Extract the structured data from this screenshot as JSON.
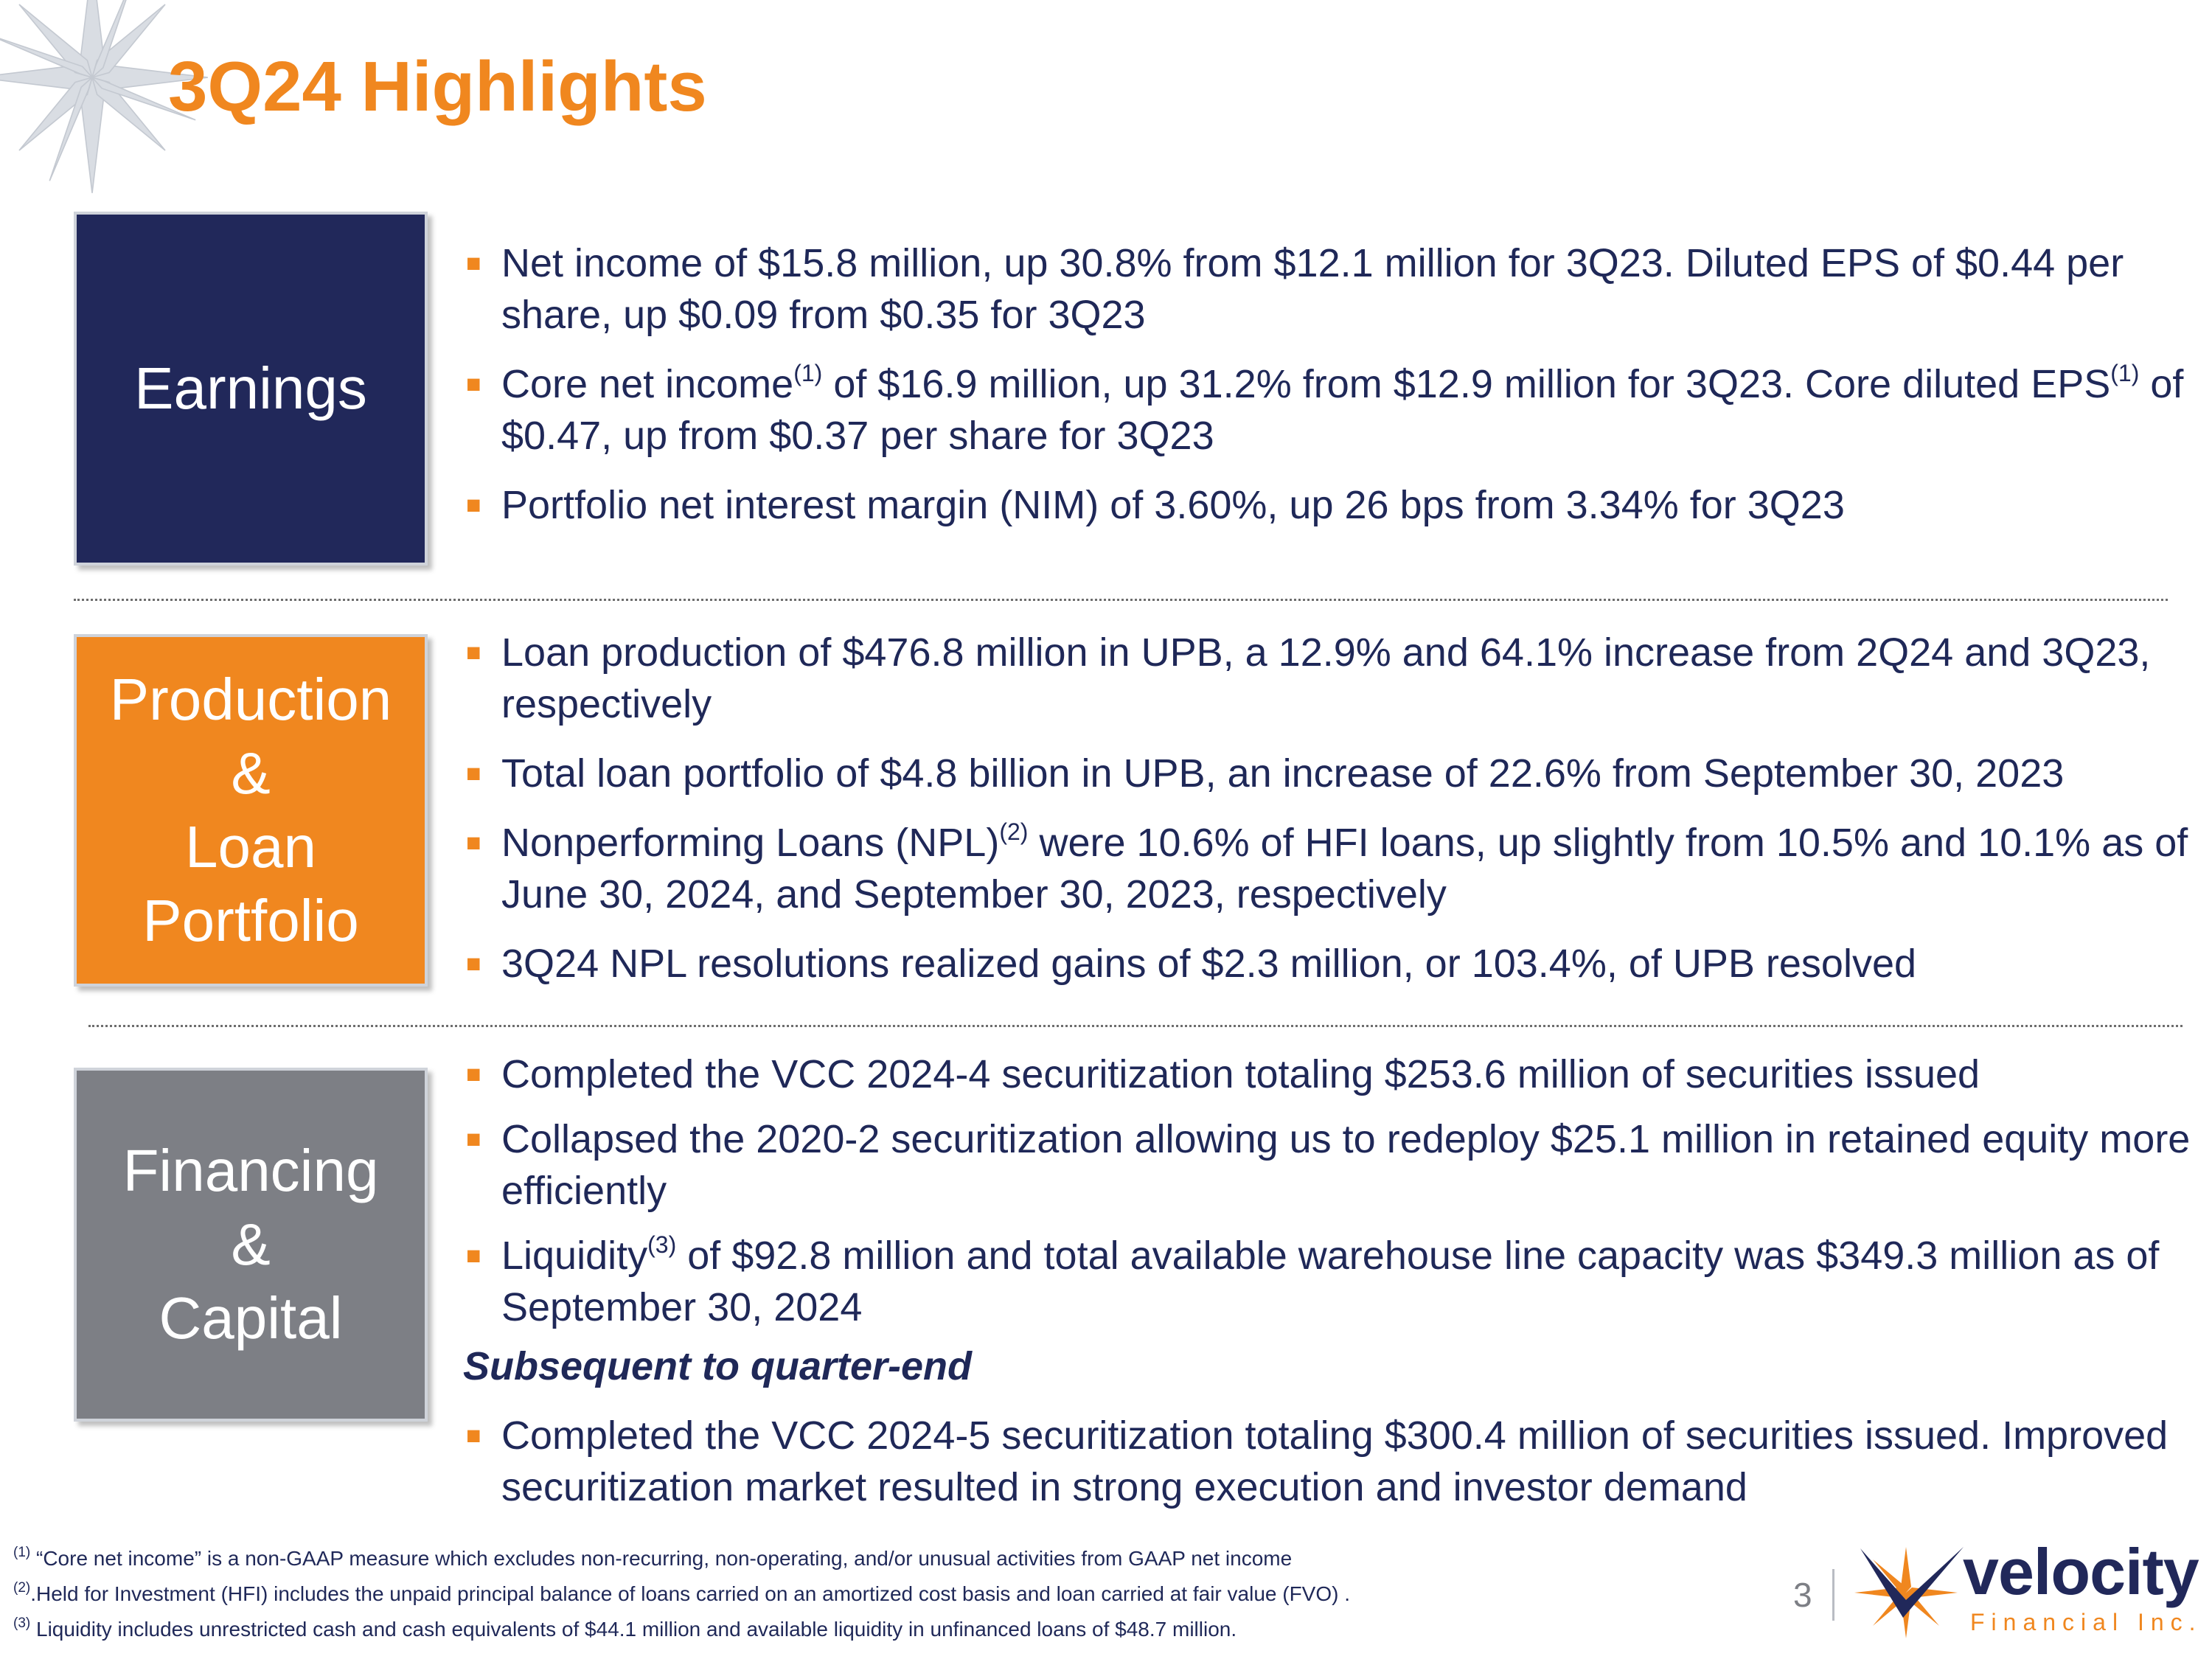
{
  "title": "3Q24 Highlights",
  "sections": {
    "earnings": {
      "label": "Earnings",
      "bullets": [
        {
          "text": "Net income of $15.8 million, up 30.8% from $12.1 million for 3Q23. Diluted EPS of $0.44 per share, up $0.09 from $0.35 for 3Q23"
        },
        {
          "pre": "Core net income",
          "sup": "(1)",
          "post": " of $16.9 million, up 31.2% from $12.9 million for 3Q23. Core diluted EPS",
          "sup2": "(1)",
          "post2": " of $0.47, up from $0.37 per share for 3Q23"
        },
        {
          "text": "Portfolio net interest margin (NIM) of 3.60%, up 26 bps from 3.34% for 3Q23"
        }
      ]
    },
    "production": {
      "label": "Production\n&\nLoan\nPortfolio",
      "bullets": [
        {
          "text": "Loan production of $476.8 million in UPB, a 12.9% and 64.1% increase from 2Q24 and 3Q23, respectively"
        },
        {
          "text": "Total loan portfolio of $4.8 billion in UPB, an increase of 22.6% from September 30, 2023"
        },
        {
          "pre": "Nonperforming Loans (NPL)",
          "sup": "(2)",
          "post": " were 10.6% of HFI loans, up slightly from 10.5% and 10.1% as of June 30, 2024, and September 30, 2023, respectively"
        },
        {
          "text": "3Q24 NPL resolutions realized gains of $2.3 million, or 103.4%, of UPB resolved"
        }
      ]
    },
    "financing": {
      "label": "Financing\n&\nCapital",
      "bullets": [
        {
          "text": "Completed the VCC 2024-4 securitization totaling $253.6 million of securities issued"
        },
        {
          "text": "Collapsed the 2020-2 securitization allowing us to redeploy $25.1 million in retained equity more efficiently"
        },
        {
          "pre": "Liquidity",
          "sup": "(3)",
          "post": " of $92.8 million and total available warehouse line capacity was $349.3 million as of September 30, 2024"
        }
      ],
      "subheading": "Subsequent to quarter-end",
      "subsequent_bullets": [
        {
          "text": "Completed the VCC 2024-5 securitization totaling $300.4 million of securities issued. Improved securitization market resulted in strong execution and investor demand"
        }
      ]
    }
  },
  "footnotes": [
    {
      "mark": "(1)",
      "text": " “Core net income” is a non-GAAP measure which excludes non-recurring, non-operating, and/or unusual activities from GAAP net income"
    },
    {
      "mark": "(2)",
      "text": ".Held for Investment (HFI) includes the unpaid principal balance of loans carried on an amortized cost basis and loan carried at fair value (FVO) ."
    },
    {
      "mark": "(3)",
      "text": " Liquidity includes unrestricted cash and cash equivalents of $44.1 million and available liquidity in unfinanced loans of $48.7 million."
    }
  ],
  "page_number": "3",
  "logo": {
    "name": "velocity",
    "subtitle": "Financial Inc."
  },
  "colors": {
    "orange": "#f0871f",
    "navy": "#21285a",
    "gray": "#7d7f85"
  }
}
